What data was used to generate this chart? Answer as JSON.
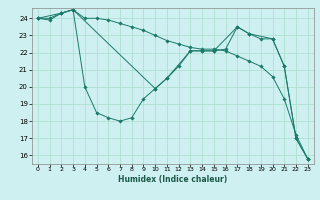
{
  "xlabel": "Humidex (Indice chaleur)",
  "bg_color": "#cff0f0",
  "grid_color": "#aaddcc",
  "line_color": "#1a7a6a",
  "xlim": [
    -0.5,
    23.5
  ],
  "ylim": [
    15.5,
    24.6
  ],
  "yticks": [
    16,
    17,
    18,
    19,
    20,
    21,
    22,
    23,
    24
  ],
  "xticks": [
    0,
    1,
    2,
    3,
    4,
    5,
    6,
    7,
    8,
    9,
    10,
    11,
    12,
    13,
    14,
    15,
    16,
    17,
    18,
    19,
    20,
    21,
    22,
    23
  ],
  "s1_x": [
    0,
    1,
    2,
    3,
    4,
    5,
    6,
    7,
    8,
    9,
    10,
    11,
    12,
    13,
    14,
    15,
    16,
    17,
    18,
    19,
    20,
    21,
    22,
    23
  ],
  "s1_y": [
    24.0,
    23.9,
    24.3,
    24.5,
    20.0,
    18.5,
    18.2,
    18.0,
    18.2,
    19.3,
    19.9,
    20.5,
    21.2,
    22.1,
    22.1,
    22.1,
    22.2,
    23.5,
    23.1,
    22.8,
    22.8,
    21.2,
    17.0,
    15.8
  ],
  "s2_x": [
    0,
    1,
    2,
    3,
    4,
    5,
    6,
    7,
    8,
    9,
    10,
    11,
    12,
    13,
    14,
    15,
    16,
    17,
    18,
    19,
    20,
    21,
    22,
    23
  ],
  "s2_y": [
    24.0,
    24.0,
    24.3,
    24.5,
    24.0,
    24.0,
    23.9,
    23.7,
    23.5,
    23.3,
    23.0,
    22.7,
    22.5,
    22.3,
    22.2,
    22.2,
    22.1,
    21.8,
    21.5,
    21.2,
    20.6,
    19.3,
    17.2,
    15.8
  ],
  "s3_x": [
    0,
    2,
    3,
    10,
    11,
    13,
    14,
    15,
    17,
    18,
    20,
    21,
    22,
    23
  ],
  "s3_y": [
    24.0,
    24.3,
    24.5,
    19.9,
    20.5,
    22.1,
    22.1,
    22.1,
    23.5,
    23.1,
    22.8,
    21.2,
    17.0,
    15.8
  ]
}
